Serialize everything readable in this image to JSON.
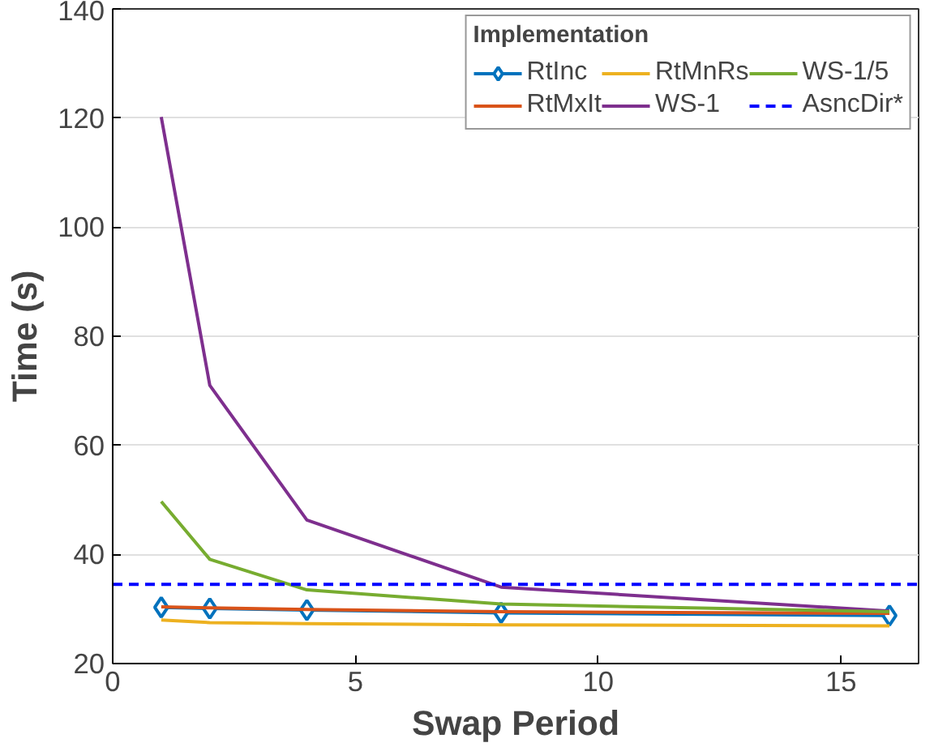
{
  "chart_data": {
    "type": "line",
    "xlabel": "Swap Period",
    "ylabel": "Time (s)",
    "legend_title": "Implementation",
    "x": [
      1,
      2,
      4,
      8,
      16
    ],
    "series": [
      {
        "name": "RtInc",
        "color": "#0072bd",
        "marker": "diamond",
        "values": [
          30.3,
          30.1,
          29.8,
          29.3,
          28.8
        ]
      },
      {
        "name": "RtMxIt",
        "color": "#d95319",
        "marker": "none",
        "values": [
          30.4,
          30.2,
          29.9,
          29.5,
          29.2
        ]
      },
      {
        "name": "RtMnRs",
        "color": "#edb120",
        "marker": "none",
        "values": [
          28.0,
          27.5,
          27.3,
          27.1,
          26.9
        ]
      },
      {
        "name": "WS-1",
        "color": "#7e2f8e",
        "marker": "none",
        "values": [
          120.2,
          71,
          46.3,
          34,
          29.6
        ]
      },
      {
        "name": "WS-1/5",
        "color": "#77ac30",
        "marker": "none",
        "values": [
          49.7,
          39.1,
          33.5,
          30.9,
          29.5
        ]
      }
    ],
    "ref_lines": [
      {
        "axis": "y",
        "value": 34.5,
        "label": "AsncDir*",
        "color": "#0000ff",
        "line_style": "dashed"
      }
    ],
    "xlim": [
      0,
      16.6
    ],
    "xticks": [
      0,
      5,
      10,
      15
    ],
    "ylim": [
      20,
      140
    ],
    "yticks": [
      20,
      40,
      60,
      80,
      100,
      120,
      140
    ],
    "grid": "y",
    "legend": "top right",
    "line_style": "solid"
  }
}
